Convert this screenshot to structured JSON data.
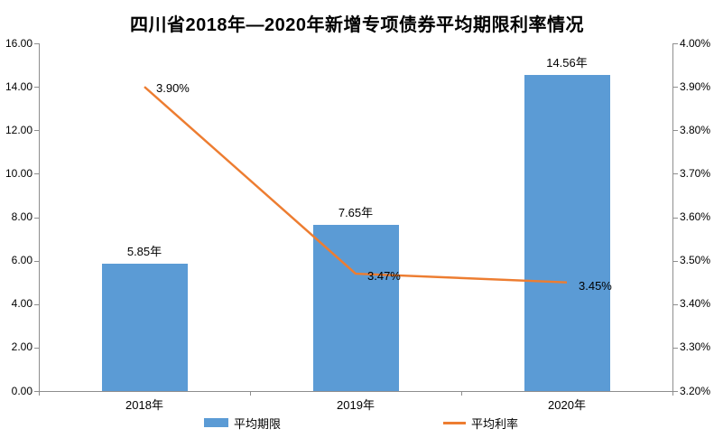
{
  "chart_data": {
    "type": "combo-bar-line",
    "title": "四川省2018年—2020年新增专项债券平均期限利率情况",
    "categories": [
      "2018年",
      "2019年",
      "2020年"
    ],
    "series": [
      {
        "name": "平均期限",
        "type": "bar",
        "axis": "left",
        "values": [
          5.85,
          7.65,
          14.56
        ],
        "labels": [
          "5.85年",
          "7.65年",
          "14.56年"
        ],
        "color": "#5B9BD5"
      },
      {
        "name": "平均利率",
        "type": "line",
        "axis": "right",
        "values": [
          3.9,
          3.47,
          3.45
        ],
        "labels": [
          "3.90%",
          "3.47%",
          "3.45%"
        ],
        "color": "#ED7D31"
      }
    ],
    "left_axis": {
      "min": 0,
      "max": 16,
      "tick_labels": [
        "0.00",
        "2.00",
        "4.00",
        "6.00",
        "8.00",
        "10.00",
        "12.00",
        "14.00",
        "16.00"
      ]
    },
    "right_axis": {
      "min": 3.2,
      "max": 4.0,
      "tick_labels": [
        "3.20%",
        "3.30%",
        "3.40%",
        "3.50%",
        "3.60%",
        "3.70%",
        "3.80%",
        "3.90%",
        "4.00%"
      ]
    },
    "legend": {
      "position": "bottom",
      "entries": [
        "平均期限",
        "平均利率"
      ]
    },
    "grid": false,
    "axis_color": "#8e8e8e",
    "background": "#ffffff"
  }
}
